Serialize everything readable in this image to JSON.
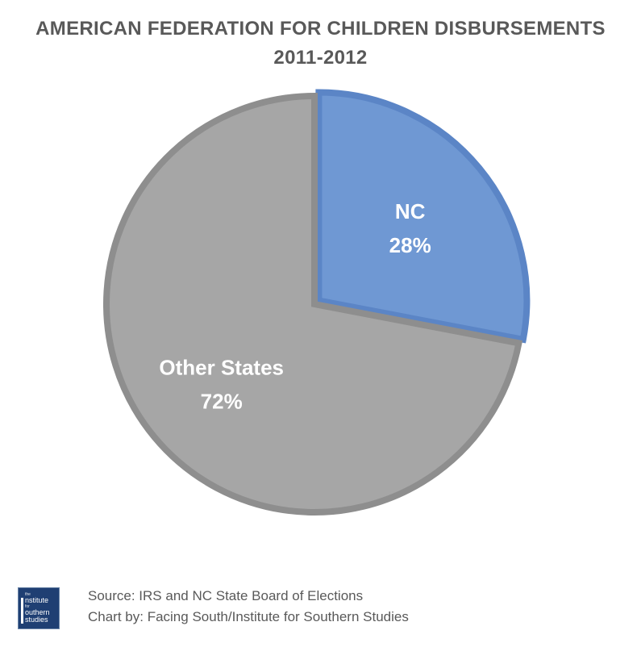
{
  "chart_data": {
    "type": "pie",
    "title": "AMERICAN FEDERATION FOR CHILDREN DISBURSEMENTS",
    "subtitle": "2011-2012",
    "slices": [
      {
        "label": "NC",
        "value": 28,
        "value_label": "28%",
        "color": "#6f98d3",
        "stroke": "#5b85c6"
      },
      {
        "label": "Other States",
        "value": 72,
        "value_label": "72%",
        "color": "#a6a6a6",
        "stroke": "#8e8e8e"
      }
    ],
    "start": "12 o'clock",
    "direction": "clockwise",
    "legend": "none",
    "data_labels": "inside"
  },
  "footer": {
    "source": "Source: IRS and NC State Board of Elections",
    "credit": "Chart by: Facing South/Institute for Southern Studies",
    "logo": {
      "line1": "the",
      "line2": "nstitute",
      "line3": "for",
      "line4": "outhern",
      "line5": "studies"
    }
  }
}
